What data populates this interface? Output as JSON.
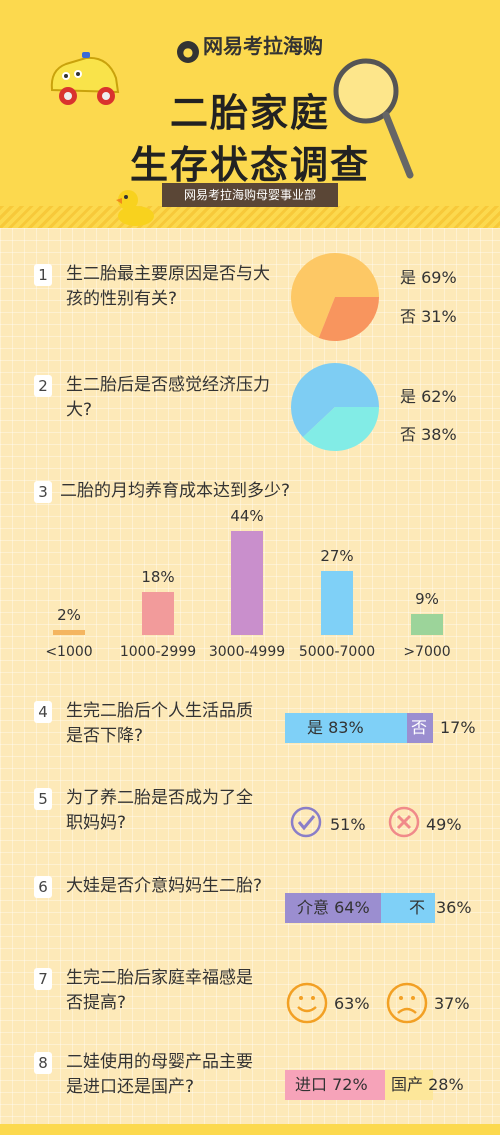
{
  "header": {
    "brand": "网易考拉海购",
    "title_line1": "二胎家庭",
    "title_line2": "生存状态调查",
    "ribbon": "网易考拉海购母婴事业部"
  },
  "questions": [
    {
      "num": "1",
      "text": "生二胎最主要原因是否与大孩的性别有关?",
      "yes_label": "是 69%",
      "no_label": "否 31%"
    },
    {
      "num": "2",
      "text": "生二胎后是否感觉经济压力大?",
      "yes_label": "是 62%",
      "no_label": "否 38%"
    },
    {
      "num": "3",
      "text": "二胎的月均养育成本达到多少?"
    },
    {
      "num": "4",
      "text": "生完二胎后个人生活品质是否下降?",
      "a_label": "是 83%",
      "b_label": "否",
      "b_value": "17%"
    },
    {
      "num": "5",
      "text": "为了养二胎是否成为了全职妈妈?",
      "yes_value": "51%",
      "no_value": "49%"
    },
    {
      "num": "6",
      "text": "大娃是否介意妈妈生二胎?",
      "a_label": "介意 64%",
      "b_label": "不",
      "b_value": "36%"
    },
    {
      "num": "7",
      "text": "生完二胎后家庭幸福感是否提高?",
      "yes_value": "63%",
      "no_value": "37%"
    },
    {
      "num": "8",
      "text": "二娃使用的母婴产品主要是进口还是国产?",
      "a_label": "进口 72%",
      "b_label": "国产 28%"
    }
  ],
  "chart_data": [
    {
      "type": "pie",
      "categories": [
        "是",
        "否"
      ],
      "values": [
        69,
        31
      ],
      "colors": [
        "#fdc865",
        "#f8955e"
      ]
    },
    {
      "type": "pie",
      "categories": [
        "是",
        "否"
      ],
      "values": [
        62,
        38
      ],
      "colors": [
        "#7ecdf3",
        "#82ece6"
      ]
    },
    {
      "type": "bar",
      "categories": [
        "<1000",
        "1000-2999",
        "3000-4999",
        "5000-7000",
        ">7000"
      ],
      "labels": [
        "2%",
        "18%",
        "44%",
        "27%",
        "9%"
      ],
      "values": [
        2,
        18,
        44,
        27,
        9
      ],
      "colors": [
        "#f4b560",
        "#f29b9b",
        "#c98fcc",
        "#7fd0f7",
        "#9cd49a"
      ]
    },
    {
      "type": "bar",
      "categories": [
        "是",
        "否"
      ],
      "values": [
        83,
        17
      ],
      "colors": [
        "#7fd0f7",
        "#9b8ed0"
      ]
    },
    {
      "type": "pie",
      "categories": [
        "是",
        "否"
      ],
      "values": [
        51,
        49
      ]
    },
    {
      "type": "bar",
      "categories": [
        "介意",
        "不"
      ],
      "values": [
        64,
        36
      ],
      "colors": [
        "#9b8ed0",
        "#7fd0f7"
      ]
    },
    {
      "type": "pie",
      "categories": [
        "是",
        "否"
      ],
      "values": [
        63,
        37
      ]
    },
    {
      "type": "bar",
      "categories": [
        "进口",
        "国产"
      ],
      "values": [
        72,
        28
      ],
      "colors": [
        "#f6a3b9",
        "#fde79a"
      ]
    }
  ]
}
